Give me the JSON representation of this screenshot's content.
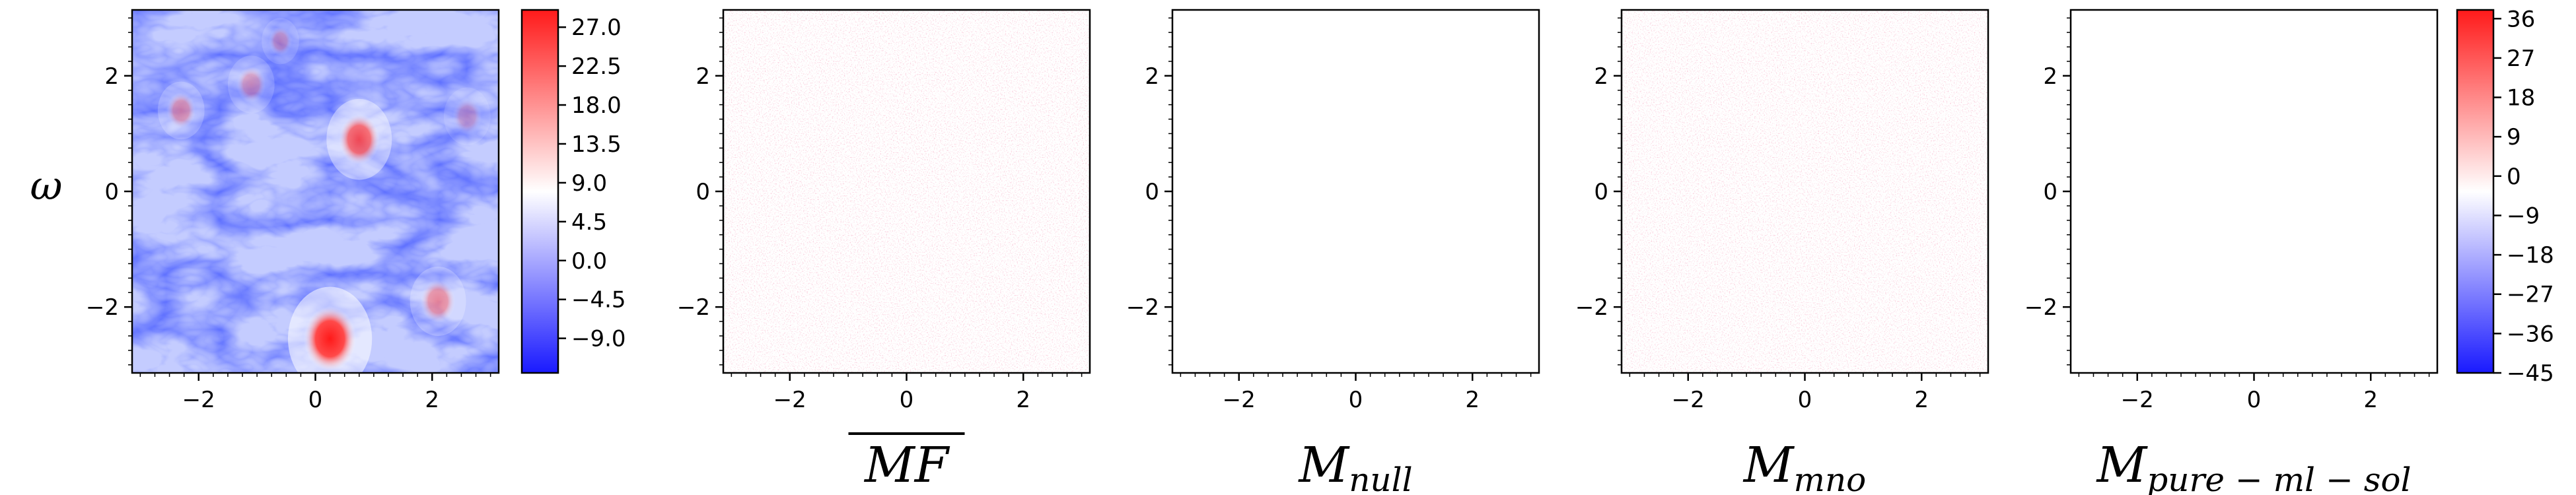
{
  "chart_data": [
    {
      "type": "heatmap",
      "ylabel": "ω",
      "xlabel": "",
      "xlim": [
        -3.14,
        3.14
      ],
      "ylim": [
        -3.14,
        3.14
      ],
      "xticks": [
        "−2",
        "0",
        "2"
      ],
      "yticks": [
        "2",
        "0",
        "−2"
      ],
      "field": "vorticity",
      "colorbar": {
        "vmin": -13,
        "vmax": 29,
        "ticks": [
          "27.0",
          "22.5",
          "18.0",
          "13.5",
          "9.0",
          "4.5",
          "0.0",
          "−4.5",
          "−9.0"
        ],
        "tick_values": [
          27.0,
          22.5,
          18.0,
          13.5,
          9.0,
          4.5,
          0.0,
          -4.5,
          -9.0
        ],
        "colormap": "bwr"
      },
      "colors": {
        "background": "#c4ccff",
        "low": "#1f2bff",
        "mid": "#ffffff",
        "high": "#ff1e1e"
      },
      "vortices": [
        {
          "x": 0.25,
          "y": -2.55,
          "strength": 27,
          "radius": 0.45
        },
        {
          "x": 0.75,
          "y": 0.9,
          "strength": 20,
          "radius": 0.35
        },
        {
          "x": 2.1,
          "y": -1.9,
          "strength": 12,
          "radius": 0.3
        },
        {
          "x": -2.3,
          "y": 1.4,
          "strength": 10,
          "radius": 0.25
        },
        {
          "x": -1.1,
          "y": 1.85,
          "strength": 8,
          "radius": 0.25
        },
        {
          "x": -0.6,
          "y": 2.6,
          "strength": 7,
          "radius": 0.2
        },
        {
          "x": 2.6,
          "y": 1.3,
          "strength": 6,
          "radius": 0.25
        }
      ]
    },
    {
      "type": "heatmap",
      "xlabel": "MF",
      "xlabel_overline": true,
      "xlim": [
        -3.14,
        3.14
      ],
      "ylim": [
        -3.14,
        3.14
      ],
      "xticks": [
        "−2",
        "0",
        "2"
      ],
      "yticks": [
        "2",
        "0",
        "−2"
      ],
      "pattern": "faint red dotted texture",
      "intensity": 0.35
    },
    {
      "type": "heatmap",
      "xlabel": "M",
      "xlabel_sub": "null",
      "xlim": [
        -3.14,
        3.14
      ],
      "ylim": [
        -3.14,
        3.14
      ],
      "xticks": [
        "−2",
        "0",
        "2"
      ],
      "yticks": [
        "2",
        "0",
        "−2"
      ],
      "pattern": "blank",
      "intensity": 0
    },
    {
      "type": "heatmap",
      "xlabel": "M",
      "xlabel_sub": "mno",
      "xlim": [
        -3.14,
        3.14
      ],
      "ylim": [
        -3.14,
        3.14
      ],
      "xticks": [
        "−2",
        "0",
        "2"
      ],
      "yticks": [
        "2",
        "0",
        "−2"
      ],
      "pattern": "faint red dotted texture",
      "intensity": 0.35
    },
    {
      "type": "heatmap",
      "xlabel": "M",
      "xlabel_sub": "pure − ml − sol",
      "xlim": [
        -3.14,
        3.14
      ],
      "ylim": [
        -3.14,
        3.14
      ],
      "xticks": [
        "−2",
        "0",
        "2"
      ],
      "yticks": [
        "2",
        "0",
        "−2"
      ],
      "pattern": "blank",
      "intensity": 0,
      "colorbar": {
        "vmin": -45,
        "vmax": 38,
        "ticks": [
          "36",
          "27",
          "18",
          "9",
          "0",
          "−9",
          "−18",
          "−27",
          "−36",
          "−45"
        ],
        "tick_values": [
          36,
          27,
          18,
          9,
          0,
          -9,
          -18,
          -27,
          -36,
          -45
        ],
        "colormap": "bwr"
      }
    }
  ]
}
